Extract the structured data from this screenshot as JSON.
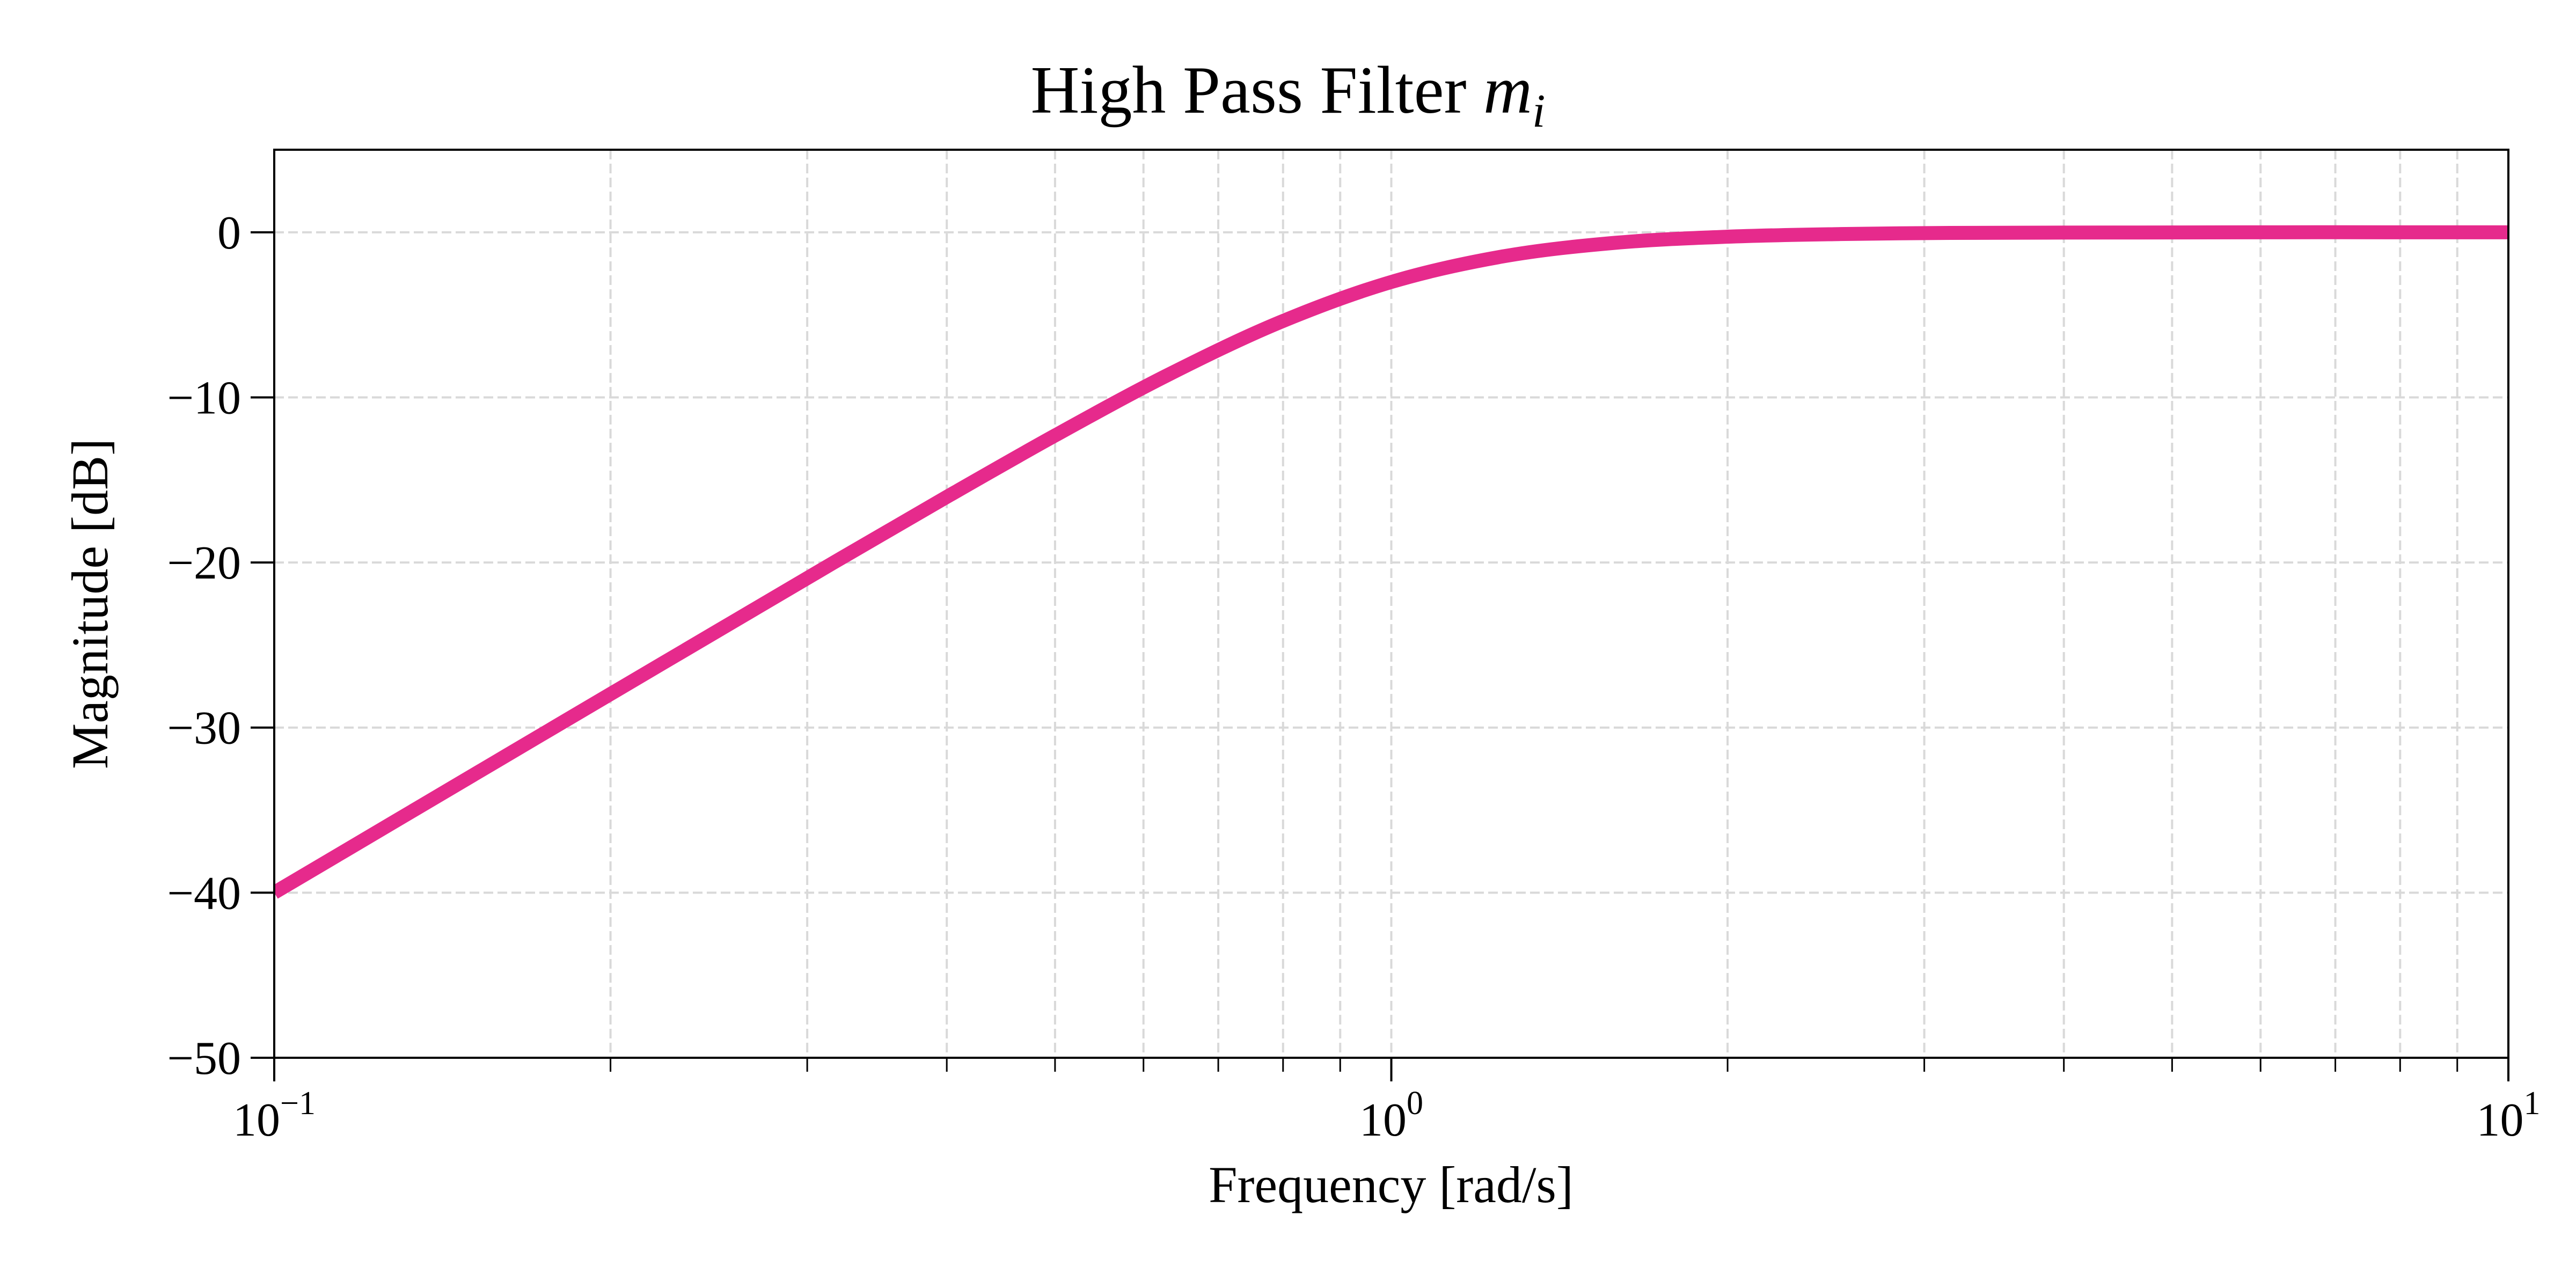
{
  "chart_data": {
    "type": "line",
    "title": "High Pass Filter",
    "title_math": "m",
    "title_math_sub": "i",
    "xlabel": "Frequency [rad/s]",
    "ylabel": "Magnitude [dB]",
    "xscale": "log",
    "xlim": [
      0.1,
      10
    ],
    "ylim": [
      -50,
      5
    ],
    "grid": true,
    "grid_style": "dashed, major and minor on x",
    "x_ticks": [
      {
        "value": 0.1,
        "base": "10",
        "exp": "−1"
      },
      {
        "value": 1,
        "base": "10",
        "exp": "0"
      },
      {
        "value": 10,
        "base": "10",
        "exp": "1"
      }
    ],
    "y_ticks": [
      {
        "value": 0,
        "label": "0"
      },
      {
        "value": -10,
        "label": "−10"
      },
      {
        "value": -20,
        "label": "−20"
      },
      {
        "value": -30,
        "label": "−30"
      },
      {
        "value": -40,
        "label": "−40"
      },
      {
        "value": -50,
        "label": "−50"
      }
    ],
    "series": [
      {
        "color": "#e62a8c",
        "x": [
          0.1,
          0.1259,
          0.1585,
          0.1995,
          0.2512,
          0.3162,
          0.3981,
          0.5012,
          0.631,
          0.7943,
          1.0,
          1.259,
          1.585,
          1.995,
          2.512,
          3.162,
          3.981,
          5.012,
          6.31,
          7.943,
          10.0
        ],
        "y": [
          -40.0,
          -36.0,
          -32.0,
          -28.01,
          -24.02,
          -20.04,
          -16.11,
          -12.27,
          -8.64,
          -5.46,
          -3.01,
          -1.46,
          -0.64,
          -0.27,
          -0.11,
          -0.04,
          -0.02,
          -0.01,
          0.0,
          0.0,
          0.0
        ]
      }
    ]
  }
}
